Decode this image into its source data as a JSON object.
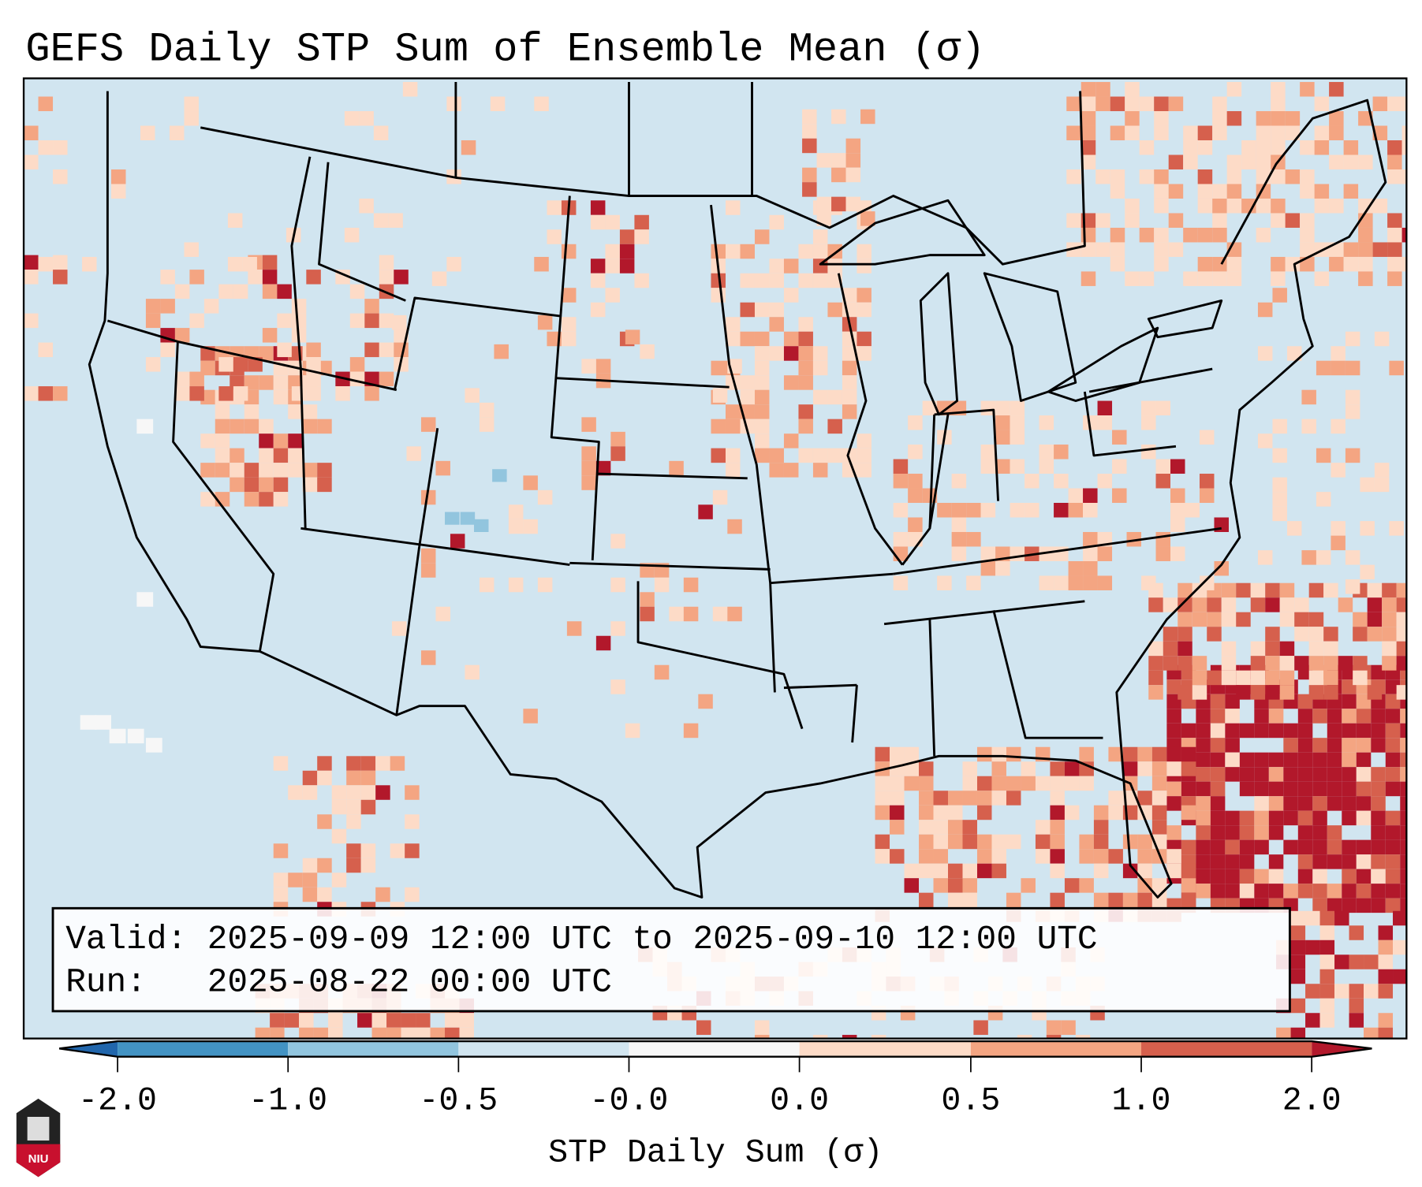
{
  "title": "GEFS Daily STP Sum of Ensemble Mean (σ)",
  "info_box": {
    "valid_line": "Valid: 2025-09-09 12:00 UTC to 2025-09-10 12:00 UTC",
    "run_line": "Run:   2025-08-22 00:00 UTC"
  },
  "colorbar": {
    "label": "STP Daily Sum (σ)",
    "ticks": [
      "-2.0",
      "-1.0",
      "-0.5",
      "-0.0",
      "0.0",
      "0.5",
      "1.0",
      "2.0"
    ],
    "colors": [
      "#4393c3",
      "#92c5de",
      "#d1e5f0",
      "#f7f7f7",
      "#fddbc7",
      "#f4a582",
      "#d6604d"
    ],
    "extend_min_color": "#2166ac",
    "extend_max_color": "#b2182b"
  },
  "logo": {
    "text": "NIU"
  },
  "chart_data": {
    "type": "heatmap",
    "title": "GEFS Daily STP Sum of Ensemble Mean (σ)",
    "colorbar_label": "STP Daily Sum (σ)",
    "levels": [
      -2.0,
      -1.0,
      -0.5,
      -0.0,
      0.0,
      0.5,
      1.0,
      2.0
    ],
    "extend": "both",
    "region": "CONUS"
  }
}
